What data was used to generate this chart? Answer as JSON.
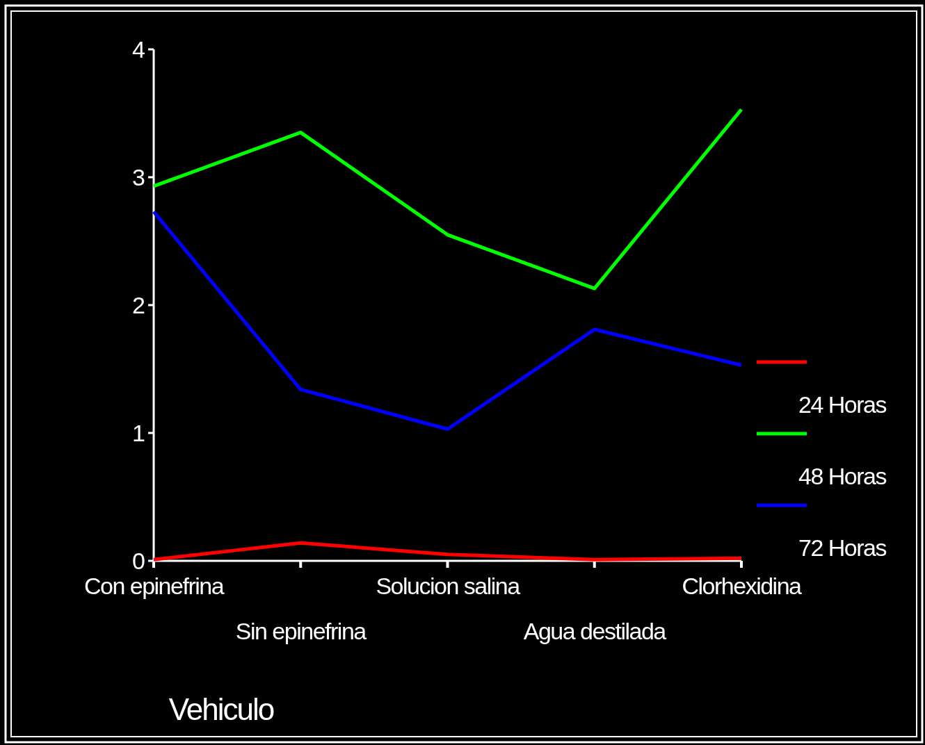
{
  "chart_data": {
    "type": "line",
    "xlabel": "Vehiculo",
    "categories": [
      "Con epinefrina",
      "Sin epinefrina",
      "Solucion salina",
      "Agua destilada",
      "Clorhexidina"
    ],
    "series": [
      {
        "name": "24 Horas",
        "color": "#ff0000",
        "values": [
          0.01,
          0.14,
          0.05,
          0.01,
          0.02
        ]
      },
      {
        "name": "48 Horas",
        "color": "#00ff00",
        "values": [
          2.93,
          3.35,
          2.55,
          2.13,
          3.53
        ]
      },
      {
        "name": "72 Horas",
        "color": "#0000ff",
        "values": [
          2.73,
          1.34,
          1.03,
          1.81,
          1.53
        ]
      }
    ],
    "ylim": [
      0,
      4
    ],
    "yticks": [
      0,
      1,
      2,
      3,
      4
    ],
    "grid": false,
    "legend": "right",
    "marker": "none",
    "line_style": "solid"
  }
}
